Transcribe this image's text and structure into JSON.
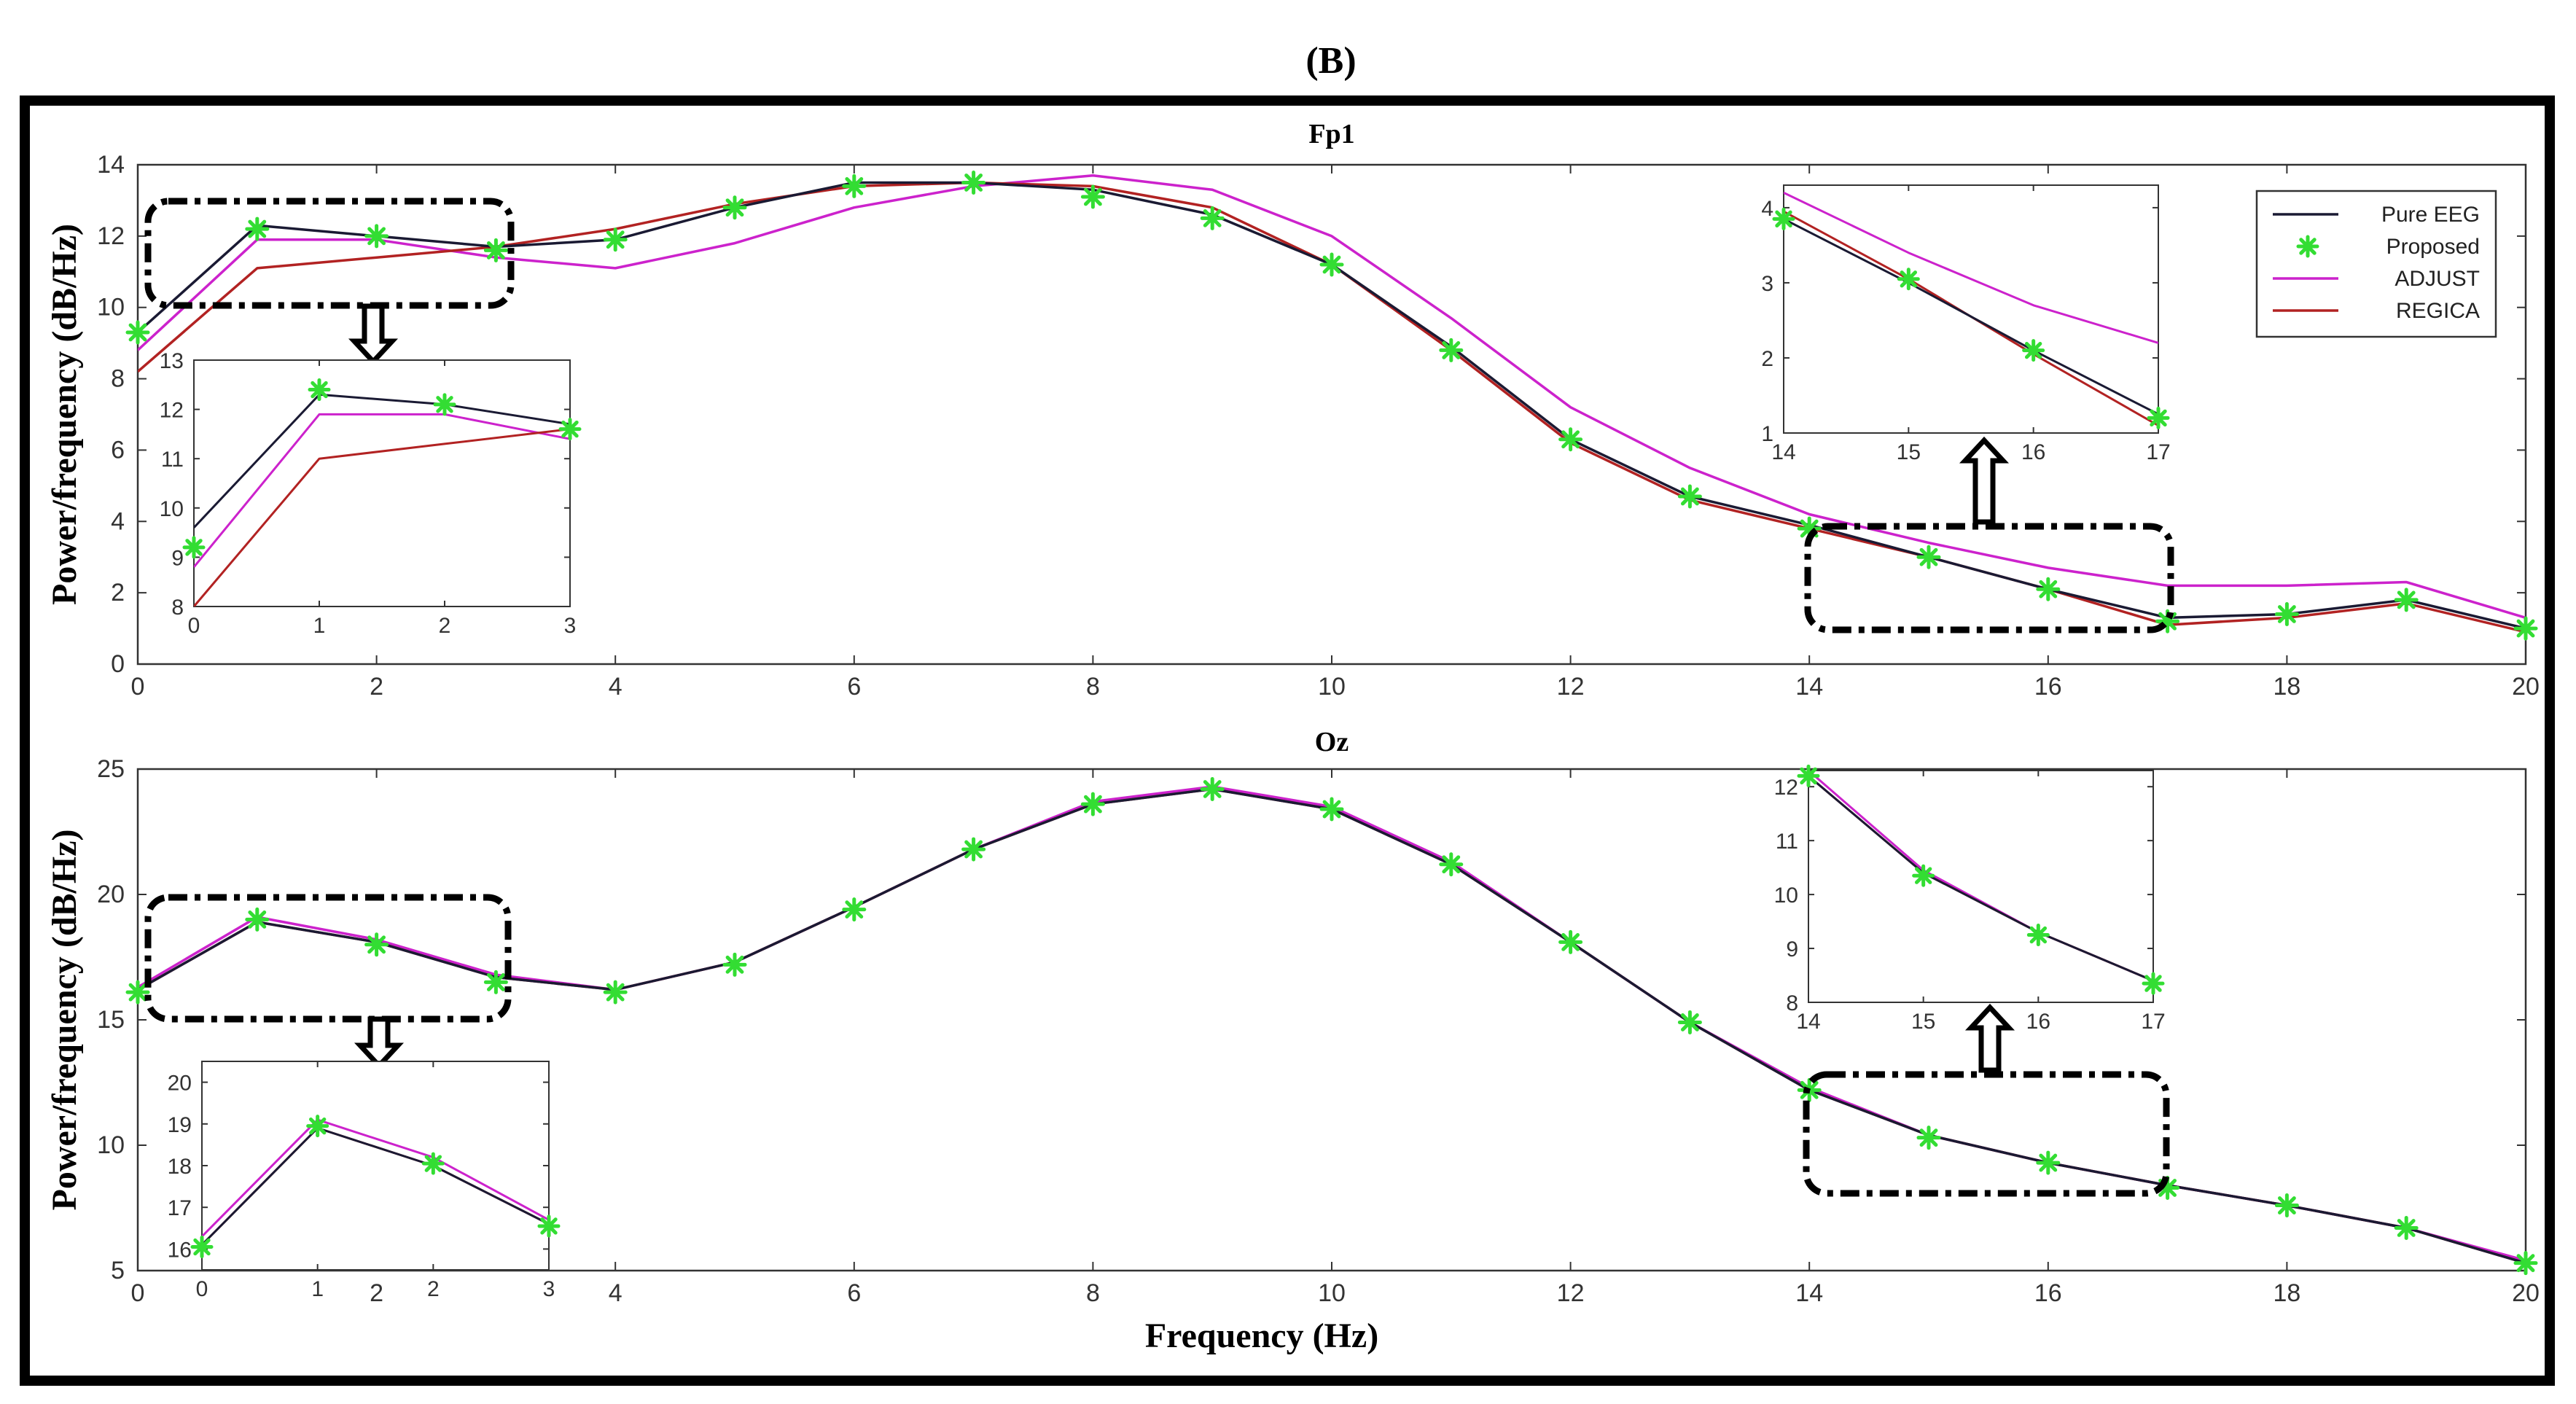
{
  "figure_title": "(B)",
  "xlabel": "Frequency (Hz)",
  "colors": {
    "Pure EEG": "#1a1a33",
    "Proposed": "#33dd33",
    "ADJUST": "#cc22cc",
    "REGICA": "#b22222",
    "highlight_box": "#000000",
    "frame": "#000000"
  },
  "legend": {
    "placement": "top-right",
    "entries": [
      "Pure EEG",
      "Proposed",
      "ADJUST",
      "REGICA"
    ]
  },
  "chart_data": [
    {
      "type": "line",
      "title": "Fp1",
      "xlabel": "",
      "ylabel": "Power/frequency (dB/Hz)",
      "xlim": [
        0,
        20
      ],
      "ylim": [
        0,
        14
      ],
      "xticks": [
        0,
        2,
        4,
        6,
        8,
        10,
        12,
        14,
        16,
        18,
        20
      ],
      "yticks": [
        0,
        2,
        4,
        6,
        8,
        10,
        12,
        14
      ],
      "x": [
        0,
        1,
        2,
        3,
        4,
        5,
        6,
        7,
        8,
        9,
        10,
        11,
        12,
        13,
        14,
        15,
        16,
        17,
        18,
        19,
        20
      ],
      "series": [
        {
          "name": "Pure EEG",
          "style": "line",
          "values": [
            9.3,
            12.3,
            12.0,
            11.7,
            11.9,
            12.8,
            13.5,
            13.5,
            13.3,
            12.6,
            11.2,
            8.9,
            6.3,
            4.7,
            3.9,
            3.0,
            2.1,
            1.3,
            1.4,
            1.8,
            1.0
          ]
        },
        {
          "name": "Proposed",
          "style": "markers",
          "values": [
            9.3,
            12.2,
            12.0,
            11.6,
            11.9,
            12.8,
            13.4,
            13.5,
            13.1,
            12.5,
            11.2,
            8.8,
            6.3,
            4.7,
            3.8,
            3.0,
            2.1,
            1.2,
            1.4,
            1.8,
            1.0
          ]
        },
        {
          "name": "ADJUST",
          "style": "line",
          "values": [
            8.8,
            11.9,
            11.9,
            11.4,
            11.1,
            11.8,
            12.8,
            13.4,
            13.7,
            13.3,
            12.0,
            9.7,
            7.2,
            5.5,
            4.2,
            3.4,
            2.7,
            2.2,
            2.2,
            2.3,
            1.3
          ]
        },
        {
          "name": "REGICA",
          "style": "line",
          "values": [
            8.2,
            11.1,
            11.4,
            11.7,
            12.2,
            12.9,
            13.4,
            13.5,
            13.4,
            12.8,
            11.2,
            8.8,
            6.2,
            4.6,
            3.8,
            3.0,
            2.1,
            1.1,
            1.3,
            1.7,
            0.9
          ]
        }
      ],
      "insets": [
        {
          "xlim": [
            0,
            3
          ],
          "ylim": [
            8,
            13
          ],
          "xticks": [
            0,
            1,
            2,
            3
          ],
          "yticks": [
            8,
            9,
            10,
            11,
            12,
            13
          ],
          "x": [
            0,
            1,
            2,
            3
          ],
          "series": [
            {
              "name": "Pure EEG",
              "style": "line",
              "values": [
                9.6,
                12.3,
                12.1,
                11.7
              ]
            },
            {
              "name": "Proposed",
              "style": "markers",
              "values": [
                9.2,
                12.4,
                12.1,
                11.6
              ]
            },
            {
              "name": "ADJUST",
              "style": "line",
              "values": [
                8.8,
                11.9,
                11.9,
                11.4
              ]
            },
            {
              "name": "REGICA",
              "style": "line",
              "values": [
                8.0,
                11.0,
                11.3,
                11.6
              ]
            }
          ]
        },
        {
          "xlim": [
            14,
            17
          ],
          "ylim": [
            1,
            4.3
          ],
          "xticks": [
            14,
            15,
            16,
            17
          ],
          "yticks": [
            1,
            2,
            3,
            4
          ],
          "x": [
            14,
            15,
            16,
            17
          ],
          "series": [
            {
              "name": "Pure EEG",
              "style": "line",
              "values": [
                3.85,
                3.0,
                2.1,
                1.25
              ]
            },
            {
              "name": "Proposed",
              "style": "markers",
              "values": [
                3.85,
                3.05,
                2.1,
                1.2
              ]
            },
            {
              "name": "ADJUST",
              "style": "line",
              "values": [
                4.2,
                3.4,
                2.7,
                2.2
              ]
            },
            {
              "name": "REGICA",
              "style": "line",
              "values": [
                3.95,
                3.05,
                2.05,
                1.1
              ]
            }
          ]
        }
      ]
    },
    {
      "type": "line",
      "title": "Oz",
      "xlabel": "Frequency (Hz)",
      "ylabel": "Power/frequency (dB/Hz)",
      "xlim": [
        0,
        20
      ],
      "ylim": [
        5,
        25
      ],
      "xticks": [
        0,
        2,
        4,
        6,
        8,
        10,
        12,
        14,
        16,
        18,
        20
      ],
      "yticks": [
        5,
        10,
        15,
        20,
        25
      ],
      "x": [
        0,
        1,
        2,
        3,
        4,
        5,
        6,
        7,
        8,
        9,
        10,
        11,
        12,
        13,
        14,
        15,
        16,
        17,
        18,
        19,
        20
      ],
      "series": [
        {
          "name": "Pure EEG",
          "style": "line",
          "values": [
            16.2,
            18.9,
            18.1,
            16.7,
            16.2,
            17.3,
            19.5,
            21.8,
            23.6,
            24.2,
            23.4,
            21.2,
            18.1,
            14.9,
            12.2,
            10.4,
            9.3,
            8.4,
            7.6,
            6.7,
            5.3
          ]
        },
        {
          "name": "Proposed",
          "style": "markers",
          "values": [
            16.1,
            19.0,
            18.0,
            16.5,
            16.1,
            17.2,
            19.4,
            21.8,
            23.6,
            24.2,
            23.4,
            21.2,
            18.1,
            14.9,
            12.2,
            10.3,
            9.3,
            8.3,
            7.6,
            6.7,
            5.3
          ]
        },
        {
          "name": "ADJUST",
          "style": "line",
          "values": [
            16.3,
            19.1,
            18.2,
            16.8,
            16.2,
            17.3,
            19.5,
            21.8,
            23.7,
            24.3,
            23.5,
            21.3,
            18.1,
            14.9,
            12.3,
            10.4,
            9.3,
            8.4,
            7.6,
            6.7,
            5.4
          ]
        },
        {
          "name": "REGICA",
          "style": "line",
          "values": [
            16.2,
            18.9,
            18.1,
            16.7,
            16.2,
            17.3,
            19.5,
            21.8,
            23.6,
            24.2,
            23.4,
            21.2,
            18.1,
            14.9,
            12.2,
            10.4,
            9.3,
            8.4,
            7.6,
            6.7,
            5.3
          ]
        }
      ],
      "insets": [
        {
          "xlim": [
            0,
            3
          ],
          "ylim": [
            15.5,
            20.5
          ],
          "xticks": [
            0,
            1,
            2,
            3
          ],
          "yticks": [
            16,
            17,
            18,
            19,
            20
          ],
          "x": [
            0,
            1,
            2,
            3
          ],
          "series": [
            {
              "name": "Pure EEG",
              "style": "line",
              "values": [
                16.1,
                18.9,
                18.0,
                16.6
              ]
            },
            {
              "name": "Proposed",
              "style": "markers",
              "values": [
                16.05,
                18.95,
                18.05,
                16.55
              ]
            },
            {
              "name": "ADJUST",
              "style": "line",
              "values": [
                16.3,
                19.1,
                18.2,
                16.7
              ]
            },
            {
              "name": "REGICA",
              "style": "line",
              "values": [
                16.1,
                18.9,
                18.0,
                16.6
              ]
            }
          ]
        },
        {
          "xlim": [
            14,
            17
          ],
          "ylim": [
            8,
            12.3
          ],
          "xticks": [
            14,
            15,
            16,
            17
          ],
          "yticks": [
            8,
            9,
            10,
            11,
            12
          ],
          "x": [
            14,
            15,
            16,
            17
          ],
          "series": [
            {
              "name": "Pure EEG",
              "style": "line",
              "values": [
                12.2,
                10.4,
                9.3,
                8.4
              ]
            },
            {
              "name": "Proposed",
              "style": "markers",
              "values": [
                12.2,
                10.35,
                9.25,
                8.35
              ]
            },
            {
              "name": "ADJUST",
              "style": "line",
              "values": [
                12.3,
                10.45,
                9.3,
                8.4
              ]
            },
            {
              "name": "REGICA",
              "style": "line",
              "values": [
                12.2,
                10.4,
                9.3,
                8.4
              ]
            }
          ]
        }
      ]
    }
  ]
}
